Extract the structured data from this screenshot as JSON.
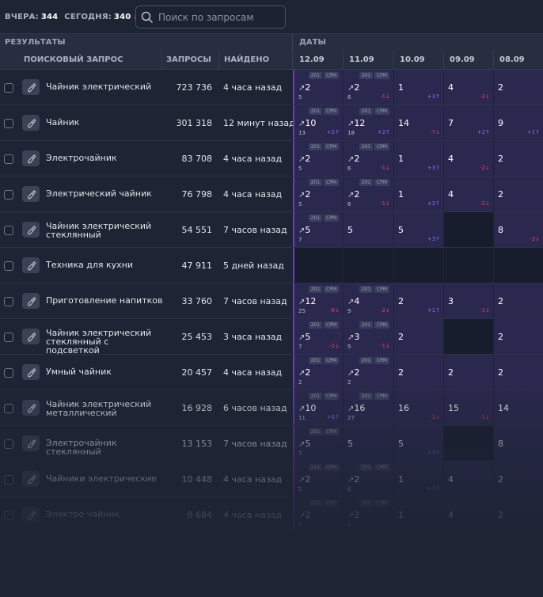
{
  "stats": {
    "yesterday_label": "ВЧЕРА:",
    "yesterday_value": "344",
    "today_label": "СЕГОДНЯ:",
    "today_value": "340",
    "today_trend_icon": "arrow-down-icon"
  },
  "search": {
    "placeholder": "Поиск по запросам",
    "value": ""
  },
  "header": {
    "results": "РЕЗУЛЬТАТЫ",
    "dates": "ДАТЫ",
    "query": "ПОИСКОВЫЙ ЗАПРОС",
    "volume": "ЗАПРОСЫ",
    "found": "НАЙДЕНО",
    "dates_list": [
      "12.09",
      "11.09",
      "10.09",
      "09.09",
      "08.09"
    ]
  },
  "colors": {
    "accent": "#6a3fb5",
    "up": "#8a6cf0",
    "down": "#e0405a",
    "highlight": "#2b2850"
  },
  "rows": [
    {
      "query": "Чайник электрический",
      "volume": "723 736",
      "found": "4 часа назад",
      "cells": [
        {
          "hi": true,
          "pos": "2",
          "arrow": true,
          "prev": "5",
          "cpm": true
        },
        {
          "hi": true,
          "pos": "2",
          "arrow": true,
          "prev": "6",
          "cpm": true,
          "delta": "-1",
          "dir": "down"
        },
        {
          "hi": true,
          "pos": "1",
          "delta": "+3",
          "dir": "up"
        },
        {
          "hi": true,
          "pos": "4",
          "delta": "-2",
          "dir": "down"
        },
        {
          "hi": true,
          "pos": "2"
        }
      ]
    },
    {
      "query": "Чайник",
      "volume": "301 318",
      "found": "12 минут назад",
      "cells": [
        {
          "hi": true,
          "pos": "10",
          "arrow": true,
          "prev": "13",
          "cpm": true,
          "delta": "+2",
          "dir": "up"
        },
        {
          "hi": true,
          "pos": "12",
          "arrow": true,
          "prev": "18",
          "cpm": true,
          "delta": "+2",
          "dir": "up"
        },
        {
          "hi": true,
          "pos": "14",
          "delta": "-7",
          "dir": "down"
        },
        {
          "hi": true,
          "pos": "7",
          "delta": "+2",
          "dir": "up"
        },
        {
          "hi": true,
          "pos": "9",
          "delta": "+1",
          "dir": "up"
        }
      ]
    },
    {
      "query": "Электрочайник",
      "volume": "83 708",
      "found": "4 часа назад",
      "cells": [
        {
          "hi": true,
          "pos": "2",
          "arrow": true,
          "prev": "5",
          "cpm": true
        },
        {
          "hi": true,
          "pos": "2",
          "arrow": true,
          "prev": "6",
          "cpm": true,
          "delta": "-1",
          "dir": "down"
        },
        {
          "hi": true,
          "pos": "1",
          "delta": "+3",
          "dir": "up"
        },
        {
          "hi": true,
          "pos": "4",
          "delta": "-2",
          "dir": "down"
        },
        {
          "hi": true,
          "pos": "2"
        }
      ]
    },
    {
      "query": "Электрический чайник",
      "volume": "76 798",
      "found": "4 часа назад",
      "cells": [
        {
          "hi": true,
          "pos": "2",
          "arrow": true,
          "prev": "5",
          "cpm": true
        },
        {
          "hi": true,
          "pos": "2",
          "arrow": true,
          "prev": "6",
          "cpm": true,
          "delta": "-1",
          "dir": "down"
        },
        {
          "hi": true,
          "pos": "1",
          "delta": "+3",
          "dir": "up"
        },
        {
          "hi": true,
          "pos": "4",
          "delta": "-2",
          "dir": "down"
        },
        {
          "hi": true,
          "pos": "2"
        }
      ]
    },
    {
      "query": "Чайник электрический стеклянный",
      "volume": "54 551",
      "found": "7 часов назад",
      "cells": [
        {
          "hi": true,
          "pos": "5",
          "arrow": true,
          "prev": "7",
          "cpm": true
        },
        {
          "hi": true,
          "pos": "5"
        },
        {
          "hi": true,
          "pos": "5",
          "delta": "+3",
          "dir": "up"
        },
        {
          "none": true,
          "pos": ""
        },
        {
          "hi": true,
          "pos": "8",
          "delta": "-3",
          "dir": "down"
        }
      ]
    },
    {
      "query": "Техника для кухни",
      "volume": "47 911",
      "found": "5 дней назад",
      "cells": [
        {
          "none": true,
          "pos": ""
        },
        {
          "none": true,
          "pos": ""
        },
        {
          "none": true,
          "pos": ""
        },
        {
          "none": true,
          "pos": ""
        },
        {
          "none": true,
          "pos": ""
        }
      ]
    },
    {
      "query": "Приготовление напитков",
      "volume": "33 760",
      "found": "7 часов назад",
      "cells": [
        {
          "hi": true,
          "pos": "12",
          "arrow": true,
          "prev": "25",
          "cpm": true,
          "delta": "-8",
          "dir": "down"
        },
        {
          "hi": true,
          "pos": "4",
          "arrow": true,
          "prev": "9",
          "cpm": true,
          "delta": "-2",
          "dir": "down"
        },
        {
          "hi": true,
          "pos": "2",
          "delta": "+1",
          "dir": "up"
        },
        {
          "hi": true,
          "pos": "3",
          "delta": "-1",
          "dir": "down"
        },
        {
          "hi": true,
          "pos": "2"
        }
      ]
    },
    {
      "query": "Чайник электрический стеклянный с подсветкой",
      "volume": "25 453",
      "found": "3 часа назад",
      "cells": [
        {
          "hi": true,
          "pos": "5",
          "arrow": true,
          "prev": "7",
          "cpm": true,
          "delta": "-2",
          "dir": "down"
        },
        {
          "hi": true,
          "pos": "3",
          "arrow": true,
          "prev": "5",
          "cpm": true,
          "delta": "-1",
          "dir": "down"
        },
        {
          "hi": true,
          "pos": "2"
        },
        {
          "none": true,
          "pos": ""
        },
        {
          "hi": true,
          "pos": "2"
        }
      ]
    },
    {
      "query": "Умный чайник",
      "volume": "20 457",
      "found": "4 часа назад",
      "cells": [
        {
          "hi": true,
          "pos": "2",
          "arrow": true,
          "prev": "2",
          "cpm": true
        },
        {
          "hi": true,
          "pos": "2",
          "arrow": true,
          "prev": "2",
          "cpm": true
        },
        {
          "hi": true,
          "pos": "2"
        },
        {
          "hi": true,
          "pos": "2"
        },
        {
          "hi": true,
          "pos": "2"
        }
      ]
    },
    {
      "query": "Чайник электрический металлический",
      "volume": "16 928",
      "found": "6 часов назад",
      "cells": [
        {
          "hi": true,
          "pos": "10",
          "arrow": true,
          "prev": "11",
          "cpm": true,
          "delta": "+6",
          "dir": "up"
        },
        {
          "hi": true,
          "pos": "16",
          "arrow": true,
          "prev": "27",
          "cpm": true
        },
        {
          "hi": true,
          "pos": "16",
          "delta": "-1",
          "dir": "down"
        },
        {
          "hi": true,
          "pos": "15",
          "delta": "-1",
          "dir": "down"
        },
        {
          "hi": true,
          "pos": "14"
        }
      ]
    },
    {
      "query": "Электрочайник стеклянный",
      "volume": "13 153",
      "found": "7 часов назад",
      "cells": [
        {
          "hi": true,
          "pos": "5",
          "arrow": true,
          "prev": "7",
          "cpm": true
        },
        {
          "hi": true,
          "pos": "5"
        },
        {
          "hi": true,
          "pos": "5",
          "delta": "+3",
          "dir": "up"
        },
        {
          "none": true,
          "pos": ""
        },
        {
          "hi": true,
          "pos": "8"
        }
      ]
    },
    {
      "query": "Чайники электрические",
      "volume": "10 448",
      "found": "4 часа назад",
      "cells": [
        {
          "hi": true,
          "pos": "2",
          "arrow": true,
          "prev": "5",
          "cpm": true
        },
        {
          "hi": true,
          "pos": "2",
          "arrow": true,
          "prev": "6",
          "cpm": true
        },
        {
          "hi": true,
          "pos": "1",
          "delta": "+3",
          "dir": "up"
        },
        {
          "hi": true,
          "pos": "4"
        },
        {
          "hi": true,
          "pos": "2"
        }
      ]
    },
    {
      "query": "Электро чайник",
      "volume": "8 684",
      "found": "4 часа назад",
      "cells": [
        {
          "hi": true,
          "pos": "2",
          "arrow": true,
          "prev": "5",
          "cpm": true
        },
        {
          "hi": true,
          "pos": "2",
          "arrow": true,
          "prev": "6",
          "cpm": true
        },
        {
          "hi": true,
          "pos": "1"
        },
        {
          "hi": true,
          "pos": "4"
        },
        {
          "hi": true,
          "pos": "2"
        }
      ]
    }
  ]
}
